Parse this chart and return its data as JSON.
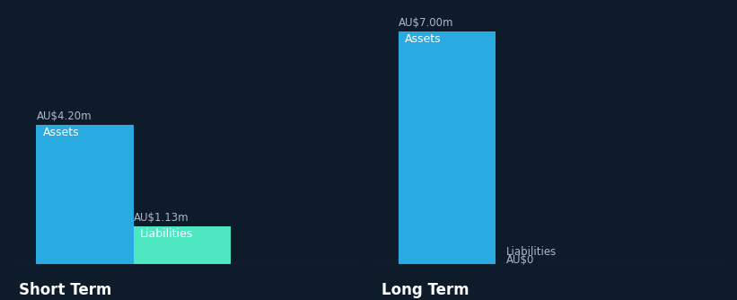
{
  "background_color": "#0d1b2a",
  "groups": [
    "Short Term",
    "Long Term"
  ],
  "values": {
    "Short Term": {
      "Assets": 4.2,
      "Liabilities": 1.13
    },
    "Long Term": {
      "Assets": 7.0,
      "Liabilities": 0.0
    }
  },
  "colors": {
    "Assets": "#29abe2",
    "Liabilities": "#4de8c2"
  },
  "value_labels": {
    "Short Term": {
      "Assets": "AU$4.20m",
      "Liabilities": "AU$1.13m"
    },
    "Long Term": {
      "Assets": "AU$7.00m",
      "Liabilities": "AU$0"
    }
  },
  "text_color": "#ffffff",
  "label_color": "#b0b8c8",
  "group_label_fontsize": 12,
  "bar_label_fontsize": 9,
  "value_label_fontsize": 8.5,
  "ylim_max": 7.5
}
